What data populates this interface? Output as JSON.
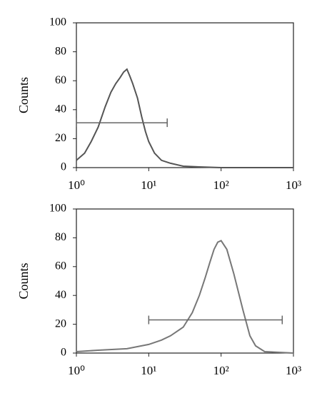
{
  "chart_data": [
    {
      "type": "line",
      "ylabel": "Counts",
      "log_x": true,
      "color": "#555555",
      "xlim": [
        1,
        1000
      ],
      "ylim": [
        0,
        100
      ],
      "xticks": [
        {
          "value": 1,
          "label": "10⁰"
        },
        {
          "value": 10,
          "label": "10¹"
        },
        {
          "value": 100,
          "label": "10²"
        },
        {
          "value": 1000,
          "label": "10³"
        }
      ],
      "yticks": [
        0,
        20,
        40,
        60,
        80,
        100
      ],
      "x": [
        1,
        1.3,
        1.6,
        2,
        2.5,
        3,
        3.5,
        4,
        4.5,
        5,
        5.5,
        6,
        7,
        8,
        9,
        10,
        12,
        15,
        20,
        30,
        50,
        100,
        1000
      ],
      "values": [
        5,
        10,
        18,
        28,
        42,
        52,
        58,
        62,
        66,
        68,
        63,
        58,
        48,
        35,
        25,
        18,
        10,
        5,
        3,
        1,
        0.5,
        0,
        0
      ],
      "gate": {
        "x": [
          1,
          18
        ],
        "y": 31
      }
    },
    {
      "type": "line",
      "ylabel": "Counts",
      "log_x": true,
      "color": "#777777",
      "xlim": [
        1,
        1000
      ],
      "ylim": [
        0,
        100
      ],
      "xticks": [
        {
          "value": 1,
          "label": "10⁰"
        },
        {
          "value": 10,
          "label": "10¹"
        },
        {
          "value": 100,
          "label": "10²"
        },
        {
          "value": 1000,
          "label": "10³"
        }
      ],
      "yticks": [
        0,
        20,
        40,
        60,
        80,
        100
      ],
      "x": [
        1,
        2,
        5,
        10,
        15,
        20,
        30,
        40,
        50,
        60,
        70,
        80,
        90,
        100,
        120,
        150,
        200,
        250,
        300,
        400,
        1000
      ],
      "values": [
        1,
        2,
        3,
        6,
        9,
        12,
        18,
        28,
        40,
        52,
        63,
        72,
        77,
        78,
        72,
        55,
        30,
        12,
        5,
        1,
        0
      ],
      "gate": {
        "x": [
          10,
          700
        ],
        "y": 23
      }
    }
  ]
}
